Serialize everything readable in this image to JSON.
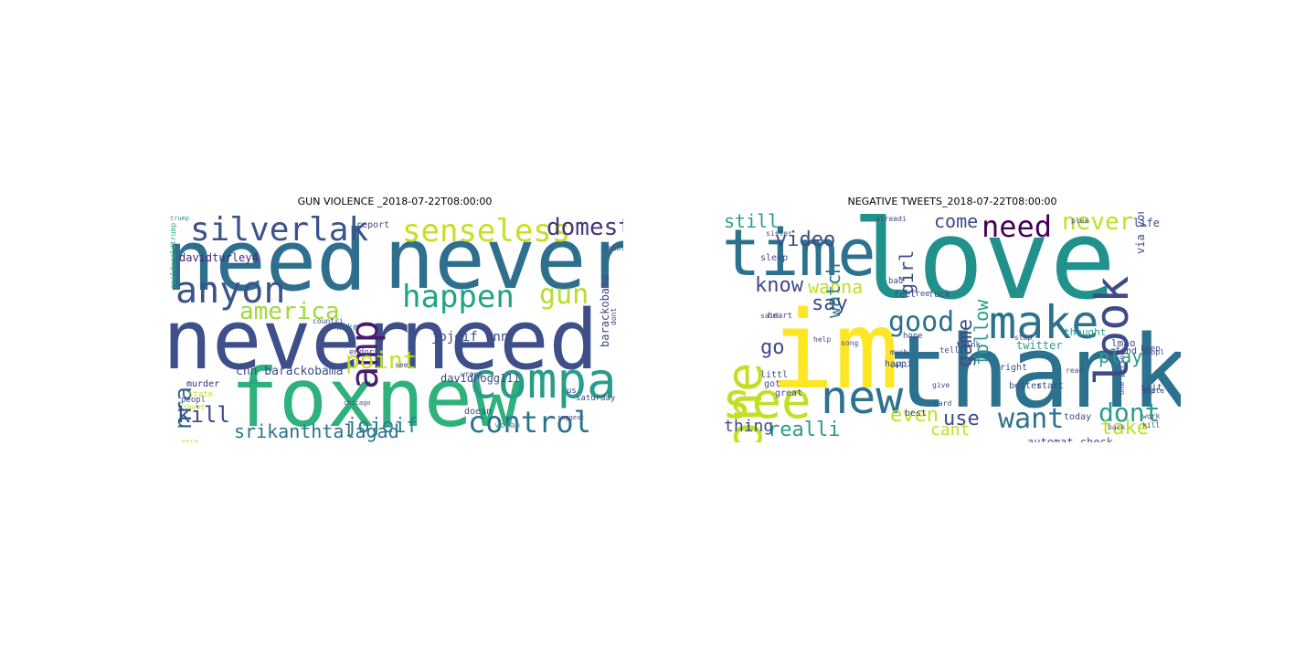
{
  "chart_data": [
    {
      "type": "wordcloud",
      "title": "GUN VIOLENCE _2018-07-22T08:00:00",
      "words": [
        {
          "text": "need",
          "size": 1.0,
          "color": "#2f6f8e"
        },
        {
          "text": "never",
          "size": 1.0,
          "color": "#2f6f8e"
        },
        {
          "text": "never",
          "size": 1.0,
          "color": "#3e4f8a"
        },
        {
          "text": "need",
          "size": 1.0,
          "color": "#3e4f8a"
        },
        {
          "text": "foxnew",
          "size": 0.95,
          "color": "#2db27d"
        },
        {
          "text": "compar",
          "size": 0.55,
          "color": "#2a9c89"
        },
        {
          "text": "anyon",
          "size": 0.42,
          "color": "#3b528b"
        },
        {
          "text": "silverlak",
          "size": 0.36,
          "color": "#3b528b"
        },
        {
          "text": "senseless",
          "size": 0.36,
          "color": "#c5e021"
        },
        {
          "text": "domest",
          "size": 0.28,
          "color": "#46337e"
        },
        {
          "text": "happen",
          "size": 0.36,
          "color": "#20a386"
        },
        {
          "text": "amp",
          "size": 0.45,
          "color": "#481b6d"
        },
        {
          "text": "gun",
          "size": 0.32,
          "color": "#b8de29"
        },
        {
          "text": "control",
          "size": 0.36,
          "color": "#2c728e"
        },
        {
          "text": "america",
          "size": 0.28,
          "color": "#a0da39"
        },
        {
          "text": "point",
          "size": 0.28,
          "color": "#c2df23"
        },
        {
          "text": "nra",
          "size": 0.26,
          "color": "#31668e"
        },
        {
          "text": "kill",
          "size": 0.26,
          "color": "#3e4a89"
        },
        {
          "text": "srikanthtalagad",
          "size": 0.2,
          "color": "#2c728e"
        },
        {
          "text": "jojeif",
          "size": 0.22,
          "color": "#27808e"
        },
        {
          "text": "jojeif cnn",
          "size": 0.15,
          "color": "#3e4a89"
        },
        {
          "text": "davidturley4",
          "size": 0.12,
          "color": "#482878"
        },
        {
          "text": "davidhogg111",
          "size": 0.12,
          "color": "#3e4a89"
        },
        {
          "text": "cnn barackobama",
          "size": 0.13,
          "color": "#3e4a89"
        },
        {
          "text": "barackobama",
          "size": 0.12,
          "color": "#3e4a89"
        },
        {
          "text": "report",
          "size": 0.1,
          "color": "#3e4a89"
        },
        {
          "text": "wake",
          "size": 0.1,
          "color": "#31668e"
        },
        {
          "text": "murder",
          "size": 0.1,
          "color": "#482878"
        },
        {
          "text": "endors",
          "size": 0.09,
          "color": "#3e4a89"
        },
        {
          "text": "doesn",
          "size": 0.1,
          "color": "#3e4a89"
        },
        {
          "text": "saturday",
          "size": 0.09,
          "color": "#3e4a89"
        },
        {
          "text": "woman",
          "size": 0.09,
          "color": "#2a9c89"
        },
        {
          "text": "peopl",
          "size": 0.09,
          "color": "#3e4a89"
        },
        {
          "text": "realdonaldtrump",
          "size": 0.08,
          "color": "#2db27d"
        },
        {
          "text": "dei815",
          "size": 0.08,
          "color": "#3e4a89"
        },
        {
          "text": "us",
          "size": 0.09,
          "color": "#3e4a89"
        },
        {
          "text": "dont",
          "size": 0.08,
          "color": "#3e4a89"
        },
        {
          "text": "state",
          "size": 0.09,
          "color": "#c2df23"
        },
        {
          "text": "shoot",
          "size": 0.08,
          "color": "#c2df23"
        },
        {
          "text": "agre",
          "size": 0.08,
          "color": "#c2df23"
        },
        {
          "text": "countri",
          "size": 0.08,
          "color": "#3e4a89"
        },
        {
          "text": "wrong",
          "size": 0.08,
          "color": "#3e4a89"
        },
        {
          "text": "trump",
          "size": 0.07,
          "color": "#2a9c89"
        },
        {
          "text": "chicago",
          "size": 0.07,
          "color": "#3e4a89"
        },
        {
          "text": "go",
          "size": 0.09,
          "color": "#2a9c89"
        },
        {
          "text": "see",
          "size": 0.08,
          "color": "#3e4a89"
        },
        {
          "text": "suggest",
          "size": 0.07,
          "color": "#3e4a89"
        }
      ]
    },
    {
      "type": "wordcloud",
      "title": "NEGATIVE TWEETS_2018-07-22T08:00:00",
      "words": [
        {
          "text": "love",
          "size": 1.0,
          "color": "#21918c"
        },
        {
          "text": "thank",
          "size": 1.0,
          "color": "#2c728e"
        },
        {
          "text": "im",
          "size": 0.95,
          "color": "#fde725"
        },
        {
          "text": "time",
          "size": 0.65,
          "color": "#2c728e"
        },
        {
          "text": "see",
          "size": 0.6,
          "color": "#c2df23"
        },
        {
          "text": "new",
          "size": 0.5,
          "color": "#2c728e"
        },
        {
          "text": "one",
          "size": 0.5,
          "color": "#c2df23"
        },
        {
          "text": "make",
          "size": 0.5,
          "color": "#2c728e"
        },
        {
          "text": "look",
          "size": 0.45,
          "color": "#3e4a89"
        },
        {
          "text": "need",
          "size": 0.3,
          "color": "#440154"
        },
        {
          "text": "never",
          "size": 0.25,
          "color": "#c2df23"
        },
        {
          "text": "good",
          "size": 0.28,
          "color": "#2c728e"
        },
        {
          "text": "want",
          "size": 0.28,
          "color": "#2c728e"
        },
        {
          "text": "dont",
          "size": 0.28,
          "color": "#2a9c89"
        },
        {
          "text": "video",
          "size": 0.22,
          "color": "#3e4a89"
        },
        {
          "text": "know",
          "size": 0.22,
          "color": "#3e4a89"
        },
        {
          "text": "still",
          "size": 0.2,
          "color": "#2a9c89"
        },
        {
          "text": "come",
          "size": 0.2,
          "color": "#3e4a89"
        },
        {
          "text": "girl",
          "size": 0.2,
          "color": "#3e4a89"
        },
        {
          "text": "wanna",
          "size": 0.2,
          "color": "#c2df23"
        },
        {
          "text": "watch",
          "size": 0.2,
          "color": "#27808e"
        },
        {
          "text": "say",
          "size": 0.22,
          "color": "#3e4a89"
        },
        {
          "text": "go",
          "size": 0.22,
          "color": "#3e4a89"
        },
        {
          "text": "even",
          "size": 0.22,
          "color": "#c2df23"
        },
        {
          "text": "use",
          "size": 0.22,
          "color": "#3e4a89"
        },
        {
          "text": "follow",
          "size": 0.2,
          "color": "#2a9c89"
        },
        {
          "text": "game",
          "size": 0.22,
          "color": "#3e4a89"
        },
        {
          "text": "realli",
          "size": 0.22,
          "color": "#2a9c89"
        },
        {
          "text": "thing",
          "size": 0.18,
          "color": "#3e4a89"
        },
        {
          "text": "cant",
          "size": 0.18,
          "color": "#c2df23"
        },
        {
          "text": "take",
          "size": 0.22,
          "color": "#c2df23"
        },
        {
          "text": "play",
          "size": 0.2,
          "color": "#2a9c89"
        },
        {
          "text": "via youtub",
          "size": 0.12,
          "color": "#3e4a89"
        },
        {
          "text": "unfollow automat",
          "size": 0.12,
          "color": "#3e4a89"
        },
        {
          "text": "automat check",
          "size": 0.12,
          "color": "#3e4a89"
        },
        {
          "text": "twitter",
          "size": 0.12,
          "color": "#2a9c89"
        },
        {
          "text": "life",
          "size": 0.12,
          "color": "#3e4a89"
        },
        {
          "text": "lmao",
          "size": 0.11,
          "color": "#3e4a89"
        },
        {
          "text": "happi",
          "size": 0.1,
          "color": "#3e4a89"
        },
        {
          "text": "best",
          "size": 0.1,
          "color": "#3e4a89"
        },
        {
          "text": "today",
          "size": 0.1,
          "color": "#3e4a89"
        },
        {
          "text": "better",
          "size": 0.1,
          "color": "#3e4a89"
        },
        {
          "text": "start",
          "size": 0.1,
          "color": "#3e4a89"
        },
        {
          "text": "thought",
          "size": 0.11,
          "color": "#2a9c89"
        },
        {
          "text": "littl",
          "size": 0.1,
          "color": "#3e4a89"
        },
        {
          "text": "great",
          "size": 0.1,
          "color": "#3e4a89"
        },
        {
          "text": "sleep",
          "size": 0.1,
          "color": "#3e4a89"
        },
        {
          "text": "heart",
          "size": 0.09,
          "color": "#3e4a89"
        },
        {
          "text": "hope",
          "size": 0.09,
          "color": "#3e4a89"
        },
        {
          "text": "feel",
          "size": 0.1,
          "color": "#3e4a89"
        },
        {
          "text": "free",
          "size": 0.09,
          "color": "#3e4a89"
        },
        {
          "text": "fuck",
          "size": 0.1,
          "color": "#3e4a89"
        },
        {
          "text": "bad",
          "size": 0.09,
          "color": "#3e4a89"
        },
        {
          "text": "tell",
          "size": 0.09,
          "color": "#3e4a89"
        },
        {
          "text": "think",
          "size": 0.09,
          "color": "#3e4a89"
        },
        {
          "text": "got",
          "size": 0.1,
          "color": "#3e4a89"
        },
        {
          "text": "right",
          "size": 0.1,
          "color": "#3e4a89"
        },
        {
          "text": "find",
          "size": 0.1,
          "color": "#3e4a89"
        },
        {
          "text": "shit",
          "size": 0.1,
          "color": "#3e4a89"
        },
        {
          "text": "keep",
          "size": 0.09,
          "color": "#3e4a89"
        },
        {
          "text": "person",
          "size": 0.08,
          "color": "#3e4a89"
        },
        {
          "text": "sister",
          "size": 0.08,
          "color": "#3e4a89"
        },
        {
          "text": "alreadi",
          "size": 0.08,
          "color": "#3e4a89"
        },
        {
          "text": "back",
          "size": 0.08,
          "color": "#3e4a89"
        },
        {
          "text": "one person",
          "size": 0.08,
          "color": "#3e4a89"
        },
        {
          "text": "stop",
          "size": 0.08,
          "color": "#3e4a89"
        },
        {
          "text": "year",
          "size": 0.08,
          "color": "#3e4a89"
        },
        {
          "text": "give",
          "size": 0.08,
          "color": "#3e4a89"
        },
        {
          "text": "hard",
          "size": 0.08,
          "color": "#3e4a89"
        },
        {
          "text": "said",
          "size": 0.08,
          "color": "#3e4a89"
        },
        {
          "text": "read",
          "size": 0.08,
          "color": "#3e4a89"
        },
        {
          "text": "help",
          "size": 0.08,
          "color": "#3e4a89"
        },
        {
          "text": "plea",
          "size": 0.08,
          "color": "#3e4a89"
        },
        {
          "text": "song",
          "size": 0.08,
          "color": "#3e4a89"
        },
        {
          "text": "call",
          "size": 0.08,
          "color": "#3e4a89"
        },
        {
          "text": "much",
          "size": 0.08,
          "color": "#3e4a89"
        },
        {
          "text": "peopl",
          "size": 0.08,
          "color": "#3e4a89"
        },
        {
          "text": "white",
          "size": 0.08,
          "color": "#3e4a89"
        },
        {
          "text": "work",
          "size": 0.08,
          "color": "#3e4a89"
        },
        {
          "text": "amp",
          "size": 0.08,
          "color": "#3e4a89"
        },
        {
          "text": "kill",
          "size": 0.08,
          "color": "#3e4a89"
        }
      ]
    }
  ]
}
